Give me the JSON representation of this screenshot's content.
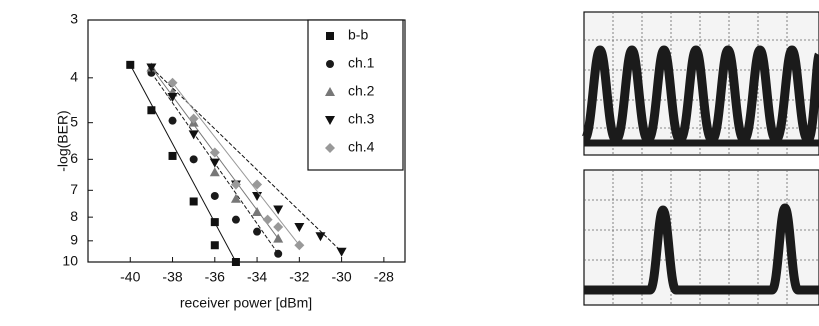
{
  "chart_data": {
    "type": "scatter",
    "x_label": "receiver power [dBm]",
    "y_label": "-log(BER)",
    "xlim": [
      -42,
      -27
    ],
    "xticks": [
      -40,
      -38,
      -36,
      -34,
      -32,
      -30,
      -28
    ],
    "ylim": [
      3,
      10
    ],
    "yticks": [
      3,
      4,
      5,
      6,
      7,
      8,
      9,
      10
    ],
    "yscale": "loglog",
    "yinverted": true,
    "fit_lines": true,
    "series": [
      {
        "name": "b-b",
        "color": "#111111",
        "marker": "square",
        "x": [
          -40,
          -39,
          -38,
          -37,
          -36,
          -36,
          -35
        ],
        "values": [
          3.75,
          4.7,
          5.9,
          7.4,
          8.2,
          9.2,
          10
        ]
      },
      {
        "name": "ch.1",
        "color": "#1a1a1a",
        "marker": "circle",
        "x": [
          -39,
          -38,
          -37,
          -36,
          -35,
          -34,
          -33
        ],
        "values": [
          3.9,
          4.95,
          6,
          7.2,
          8.1,
          8.6,
          9.6
        ]
      },
      {
        "name": "ch.2",
        "color": "#777777",
        "marker": "triangle",
        "x": [
          -39,
          -38,
          -37,
          -36,
          -35,
          -34,
          -33
        ],
        "values": [
          3.8,
          4.3,
          5,
          6.4,
          7.3,
          7.8,
          8.9
        ]
      },
      {
        "name": "ch.3",
        "color": "#111111",
        "marker": "triangle-down",
        "x": [
          -39,
          -38,
          -37,
          -36,
          -35,
          -34,
          -33,
          -32,
          -31,
          -30
        ],
        "values": [
          3.8,
          4.4,
          5.3,
          6.1,
          6.8,
          7.2,
          7.7,
          8.4,
          8.8,
          9.5
        ]
      },
      {
        "name": "ch.4",
        "color": "#999999",
        "marker": "diamond",
        "x": [
          -38,
          -37,
          -36,
          -35,
          -34,
          -33.5,
          -33,
          -32
        ],
        "values": [
          4.1,
          4.9,
          5.8,
          6.8,
          6.8,
          8.1,
          8.4,
          9.2
        ]
      }
    ]
  }
}
